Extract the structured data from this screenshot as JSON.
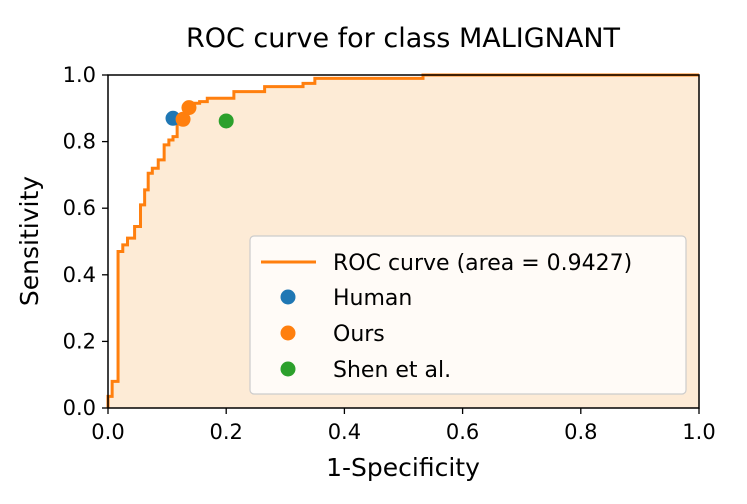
{
  "chart_data": {
    "type": "line",
    "title": "ROC curve for class MALIGNANT",
    "xlabel": "1-Specificity",
    "ylabel": "Sensitivity",
    "xlim": [
      0.0,
      1.0
    ],
    "ylim": [
      0.0,
      1.0
    ],
    "xticks": [
      "0.0",
      "0.2",
      "0.4",
      "0.6",
      "0.8",
      "1.0"
    ],
    "yticks": [
      "0.0",
      "0.2",
      "0.4",
      "0.6",
      "0.8",
      "1.0"
    ],
    "grid": false,
    "legend_position": "lower-right",
    "series": [
      {
        "name": "ROC curve (area = 0.9427)",
        "kind": "step-line",
        "color": "#ff7f0e",
        "fill_color": "#fdebd6",
        "x": [
          0.0,
          0.0,
          0.007,
          0.007,
          0.017,
          0.017,
          0.025,
          0.025,
          0.033,
          0.033,
          0.045,
          0.045,
          0.055,
          0.055,
          0.062,
          0.062,
          0.068,
          0.068,
          0.075,
          0.075,
          0.085,
          0.085,
          0.095,
          0.095,
          0.103,
          0.103,
          0.11,
          0.11,
          0.117,
          0.117,
          0.125,
          0.125,
          0.133,
          0.133,
          0.143,
          0.143,
          0.155,
          0.155,
          0.168,
          0.168,
          0.213,
          0.213,
          0.265,
          0.265,
          0.33,
          0.33,
          0.35,
          0.35,
          0.533,
          0.533,
          1.0
        ],
        "y": [
          0.0,
          0.035,
          0.035,
          0.08,
          0.08,
          0.47,
          0.47,
          0.49,
          0.49,
          0.51,
          0.51,
          0.545,
          0.545,
          0.61,
          0.61,
          0.655,
          0.655,
          0.705,
          0.705,
          0.72,
          0.72,
          0.745,
          0.745,
          0.79,
          0.79,
          0.805,
          0.805,
          0.815,
          0.815,
          0.855,
          0.855,
          0.875,
          0.875,
          0.905,
          0.905,
          0.915,
          0.915,
          0.92,
          0.92,
          0.93,
          0.93,
          0.95,
          0.95,
          0.965,
          0.965,
          0.975,
          0.975,
          0.99,
          0.99,
          1.0,
          1.0
        ]
      },
      {
        "name": "Human",
        "kind": "point",
        "color": "#1f77b4",
        "x": [
          0.11
        ],
        "y": [
          0.87
        ]
      },
      {
        "name": "Ours",
        "kind": "point",
        "color": "#ff7f0e",
        "x": [
          0.127,
          0.137
        ],
        "y": [
          0.867,
          0.902
        ]
      },
      {
        "name": "Shen et al.",
        "kind": "point",
        "color": "#2ca02c",
        "x": [
          0.2
        ],
        "y": [
          0.862
        ]
      }
    ]
  }
}
